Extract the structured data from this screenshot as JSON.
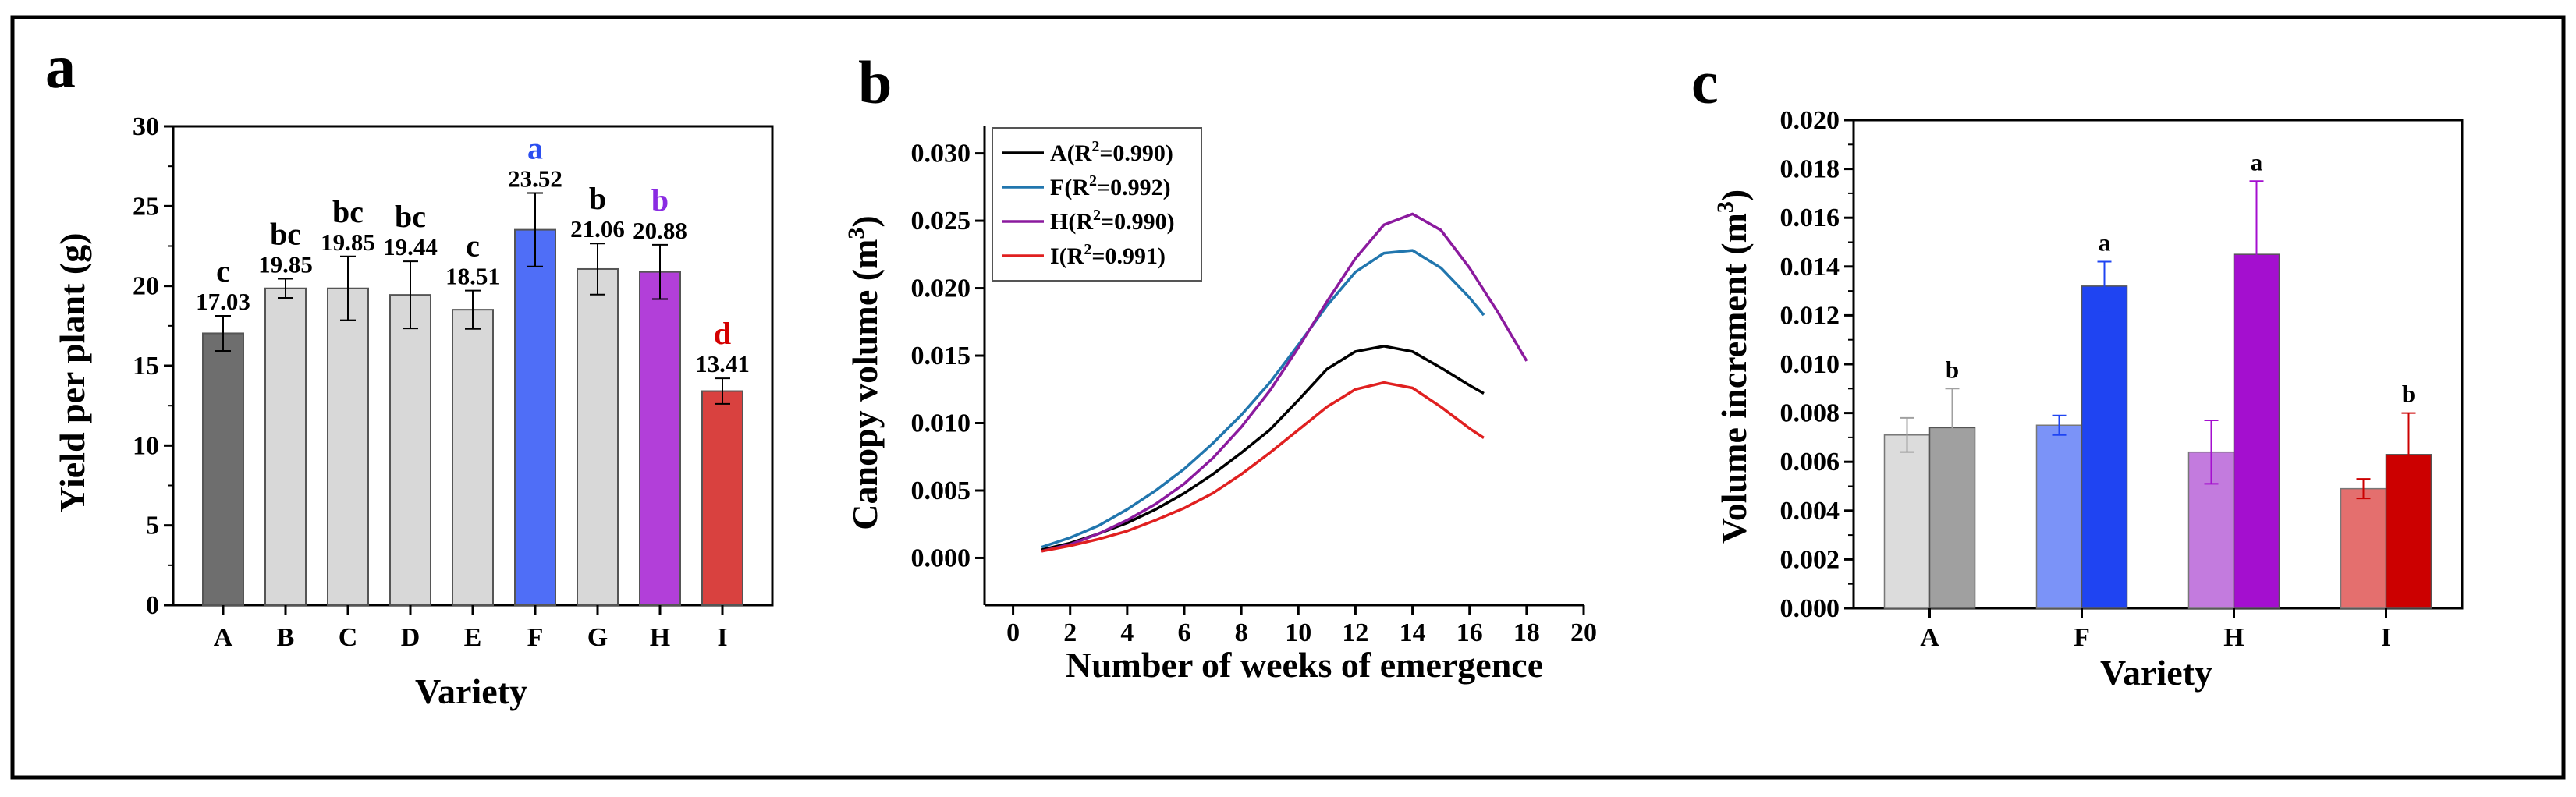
{
  "figure": {
    "panels": [
      "a",
      "b",
      "c"
    ]
  },
  "chart_data": [
    {
      "panel": "a",
      "type": "bar",
      "xlabel": "Variety",
      "ylabel": "Yield per plant (g)",
      "ylim": [
        0,
        30
      ],
      "yticks": [
        "0",
        "5",
        "10",
        "15",
        "20",
        "25",
        "30"
      ],
      "categories": [
        "A",
        "B",
        "C",
        "D",
        "E",
        "F",
        "G",
        "H",
        "I"
      ],
      "values": [
        17.03,
        19.85,
        19.85,
        19.44,
        18.51,
        23.52,
        21.06,
        20.88,
        13.41
      ],
      "value_labels": [
        "17.03",
        "19.85",
        "19.85",
        "19.44",
        "18.51",
        "23.52",
        "21.06",
        "20.88",
        "13.41"
      ],
      "errors": [
        1.1,
        0.6,
        2.0,
        2.1,
        1.2,
        2.3,
        1.6,
        1.7,
        0.8
      ],
      "letters": [
        "c",
        "bc",
        "bc",
        "bc",
        "c",
        "a",
        "b",
        "b",
        "d"
      ],
      "colors": [
        "#6e6e6e",
        "#d8d8d8",
        "#d8d8d8",
        "#d8d8d8",
        "#d8d8d8",
        "#4f6ef7",
        "#d8d8d8",
        "#b23fd9",
        "#d9413f"
      ],
      "letter_colors": [
        "#000000",
        "#000000",
        "#000000",
        "#000000",
        "#000000",
        "#2b4ef0",
        "#000000",
        "#8a2be2",
        "#d40000"
      ]
    },
    {
      "panel": "b",
      "type": "line",
      "xlabel": "Number of weeks of emergence",
      "ylabel": "Canopy volume (m3)",
      "xlim": [
        -1,
        20
      ],
      "ylim": [
        -0.0035,
        0.032
      ],
      "xticks": [
        "0",
        "2",
        "4",
        "6",
        "8",
        "10",
        "12",
        "14",
        "16",
        "18",
        "20"
      ],
      "yticks": [
        "0.000",
        "0.005",
        "0.010",
        "0.015",
        "0.020",
        "0.025",
        "0.030"
      ],
      "series": [
        {
          "name": "A",
          "legend_prefix": "A(R",
          "sup": "2",
          "legend_suffix": "=0.990)",
          "color": "#000000",
          "x": [
            1,
            2,
            3,
            4,
            5,
            6,
            7,
            8,
            9,
            10,
            11,
            12,
            13,
            14,
            15,
            16,
            16.5
          ],
          "y": [
            0.0006,
            0.0011,
            0.0018,
            0.0026,
            0.0036,
            0.0048,
            0.0062,
            0.0078,
            0.0095,
            0.0117,
            0.014,
            0.0153,
            0.0157,
            0.0153,
            0.0141,
            0.0128,
            0.0122
          ]
        },
        {
          "name": "F",
          "legend_prefix": "F(R",
          "sup": "2",
          "legend_suffix": "=0.992)",
          "color": "#2176ae",
          "x": [
            1,
            2,
            3,
            4,
            5,
            6,
            7,
            8,
            9,
            10,
            11,
            12,
            13,
            14,
            15,
            16,
            16.5
          ],
          "y": [
            0.0008,
            0.0015,
            0.0024,
            0.0036,
            0.005,
            0.0066,
            0.0085,
            0.0106,
            0.013,
            0.0158,
            0.0187,
            0.0212,
            0.0226,
            0.0228,
            0.0215,
            0.0193,
            0.018
          ]
        },
        {
          "name": "H",
          "legend_prefix": "H(R",
          "sup": "2",
          "legend_suffix": "=0.990)",
          "color": "#8b1a9e",
          "x": [
            1,
            2,
            3,
            4,
            5,
            6,
            7,
            8,
            9,
            10,
            11,
            12,
            13,
            14,
            15,
            16,
            17,
            18
          ],
          "y": [
            0.0005,
            0.001,
            0.0018,
            0.0028,
            0.004,
            0.0055,
            0.0074,
            0.0097,
            0.0124,
            0.0156,
            0.019,
            0.0222,
            0.0247,
            0.0255,
            0.0243,
            0.0215,
            0.0182,
            0.0146
          ]
        },
        {
          "name": "I",
          "legend_prefix": "I(R",
          "sup": "2",
          "legend_suffix": "=0.991)",
          "color": "#e02020",
          "x": [
            1,
            2,
            3,
            4,
            5,
            6,
            7,
            8,
            9,
            10,
            11,
            12,
            13,
            14,
            15,
            16,
            16.5
          ],
          "y": [
            0.0005,
            0.0009,
            0.0014,
            0.002,
            0.0028,
            0.0037,
            0.0048,
            0.0062,
            0.0078,
            0.0095,
            0.0112,
            0.0125,
            0.013,
            0.0126,
            0.0112,
            0.0096,
            0.0089
          ]
        }
      ]
    },
    {
      "panel": "c",
      "type": "bar",
      "xlabel": "Variety",
      "ylabel": "Volume increment (m3)",
      "ylim": [
        0,
        0.02
      ],
      "yticks": [
        "0.000",
        "0.002",
        "0.004",
        "0.006",
        "0.008",
        "0.010",
        "0.012",
        "0.014",
        "0.016",
        "0.018",
        "0.020"
      ],
      "categories": [
        "A",
        "F",
        "H",
        "I"
      ],
      "groups": [
        {
          "light": 0.0071,
          "light_err": 0.0007,
          "dark": 0.0074,
          "dark_err": 0.0016,
          "letter": "b",
          "light_color": "#dcdcdc",
          "dark_color": "#a0a0a0"
        },
        {
          "light": 0.0075,
          "light_err": 0.0004,
          "dark": 0.0132,
          "dark_err": 0.001,
          "letter": "a",
          "light_color": "#7b93f8",
          "dark_color": "#1f44f2"
        },
        {
          "light": 0.0064,
          "light_err": 0.0013,
          "dark": 0.0145,
          "dark_err": 0.003,
          "letter": "a",
          "light_color": "#c37bde",
          "dark_color": "#a40fcf"
        },
        {
          "light": 0.0049,
          "light_err": 0.0004,
          "dark": 0.0063,
          "dark_err": 0.0017,
          "letter": "b",
          "light_color": "#e46f6e",
          "dark_color": "#cc0000"
        }
      ]
    }
  ]
}
